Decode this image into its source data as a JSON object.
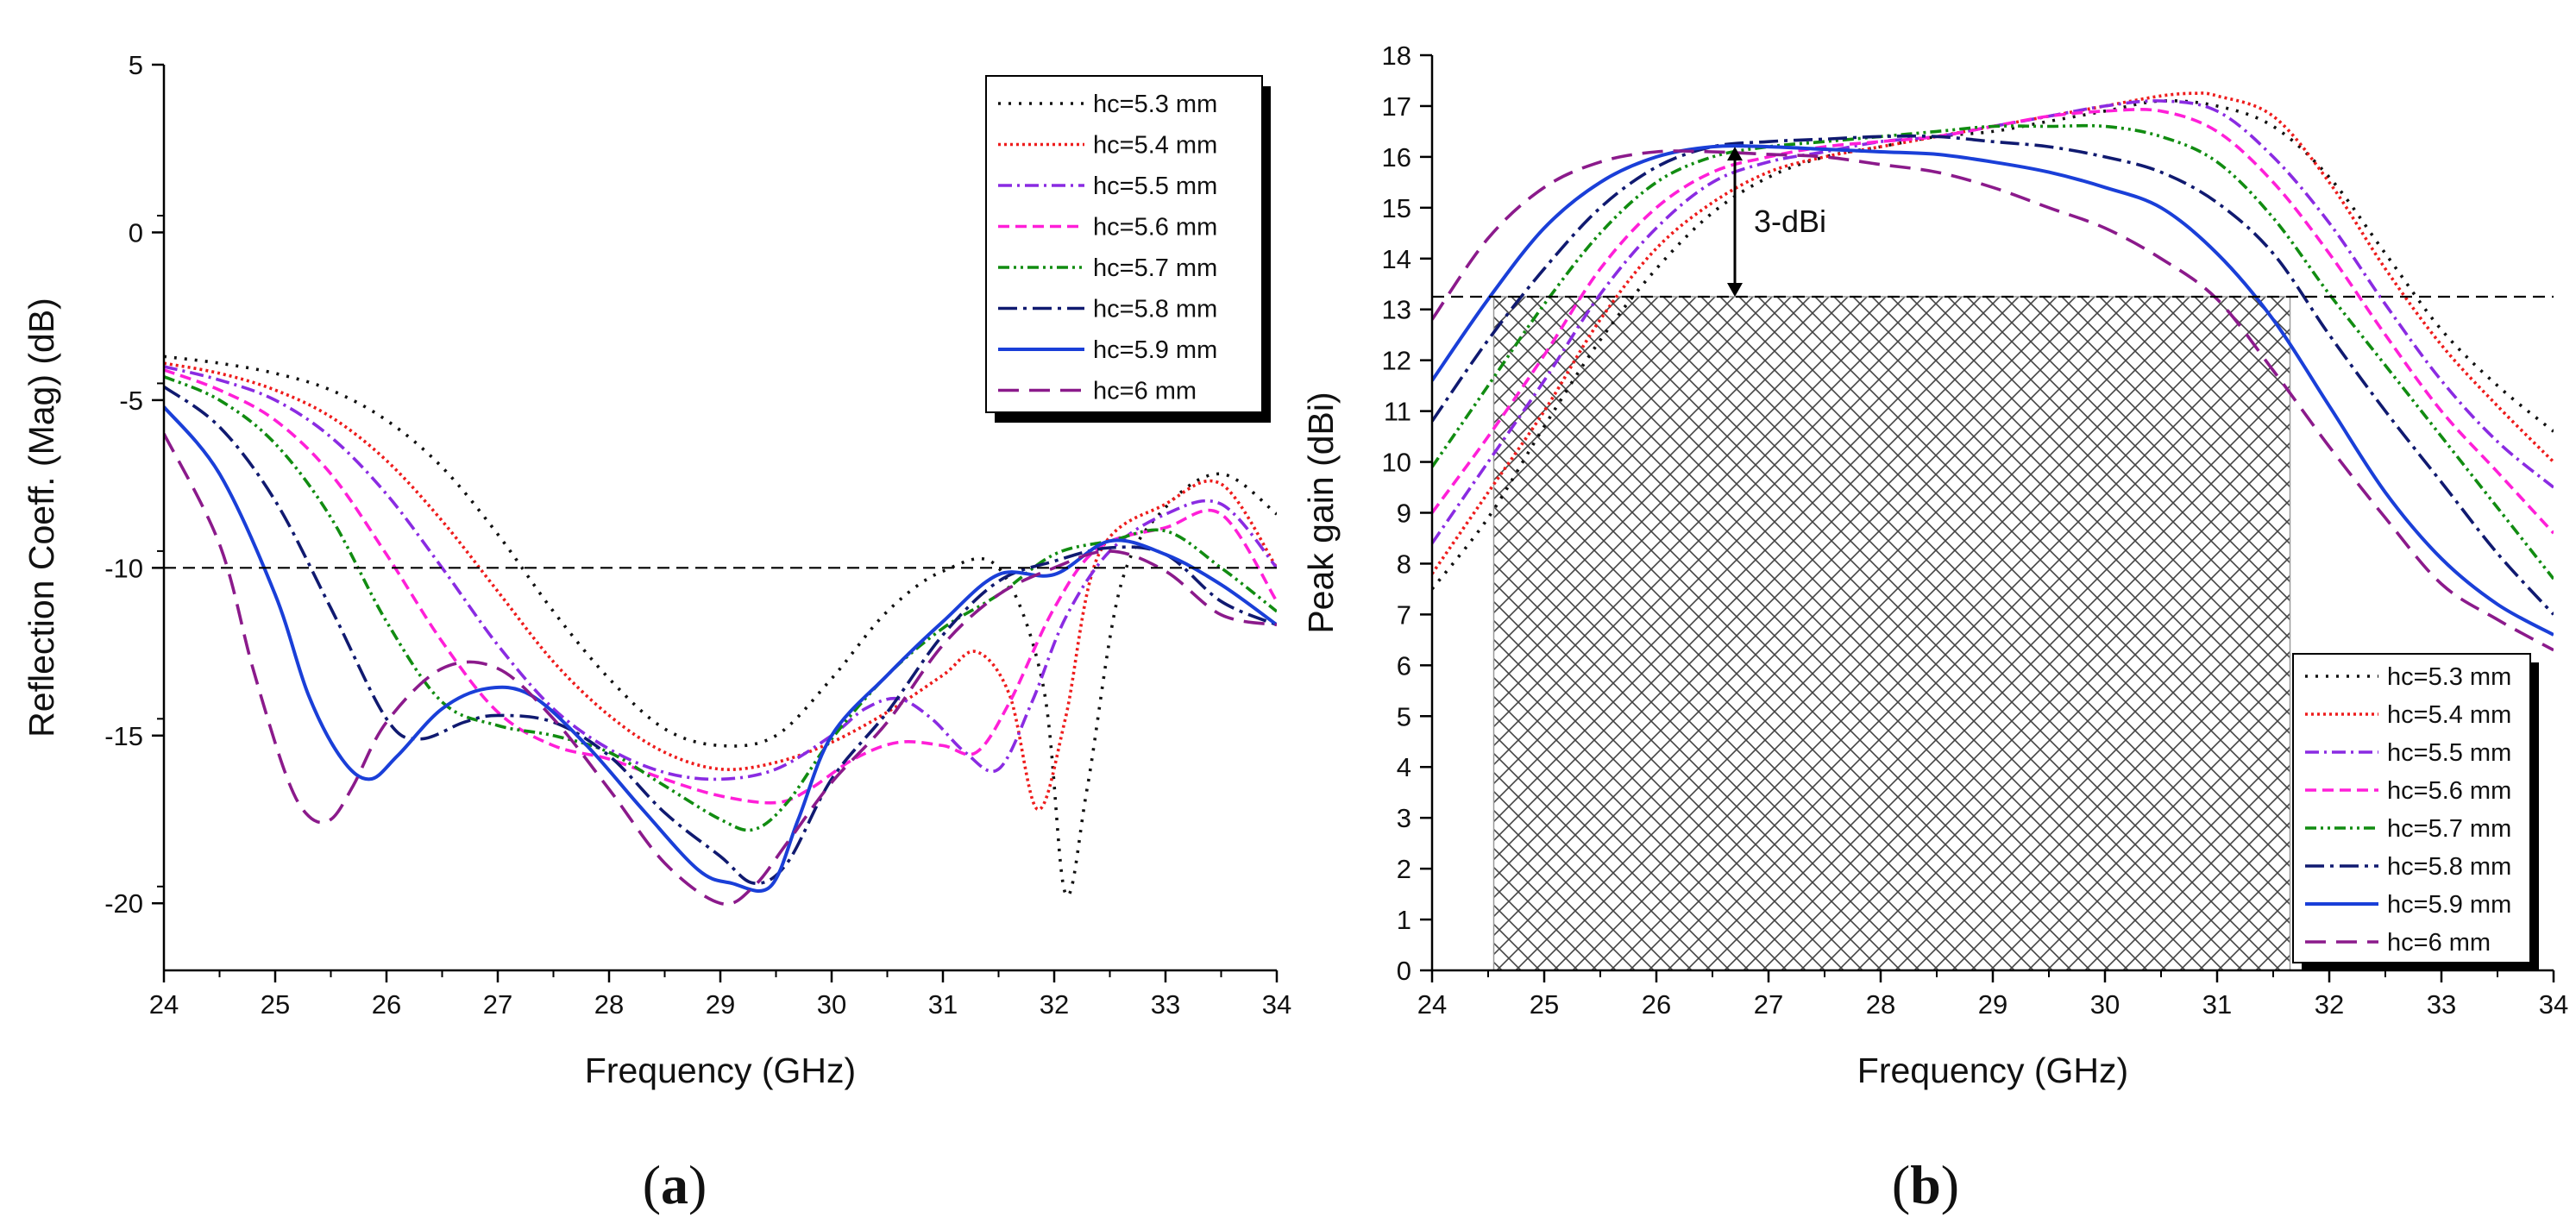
{
  "colors": {
    "hc=5.3 mm": "#111111",
    "hc=5.4 mm": "#ee1c1c",
    "hc=5.5 mm": "#8a2be2",
    "hc=5.6 mm": "#ff1fd8",
    "hc=5.7 mm": "#118c11",
    "hc=5.8 mm": "#101a70",
    "hc=5.9 mm": "#1a3fd8",
    "hc=6 mm": "#8b1a8b"
  },
  "chart_data": [
    {
      "panel_label": "a",
      "type": "line",
      "xlabel": "Frequency (GHz)",
      "ylabel": "Reflection Coeff. (Mag) (dB)",
      "xlim": [
        24,
        34
      ],
      "ylim": [
        -22,
        5
      ],
      "xticks": [
        "24",
        "25",
        "26",
        "27",
        "28",
        "29",
        "30",
        "31",
        "32",
        "33",
        "34"
      ],
      "yticks": [
        "-20",
        "-15",
        "-10",
        "-5",
        "0",
        "5"
      ],
      "reference_line_y": -10,
      "legend_position": "top-right",
      "series": [
        {
          "name": "hc=5.3 mm",
          "dash": "dot",
          "x": [
            24,
            24.5,
            25,
            25.5,
            26,
            26.5,
            27,
            27.5,
            28,
            28.5,
            29,
            29.5,
            30,
            30.5,
            31,
            31.5,
            31.9,
            32.1,
            32.3,
            32.6,
            33,
            33.5,
            34
          ],
          "y": [
            -3.7,
            -3.9,
            -4.2,
            -4.7,
            -5.6,
            -7.0,
            -9.0,
            -11.3,
            -13.3,
            -14.8,
            -15.3,
            -15.0,
            -13.3,
            -11.3,
            -10.1,
            -10.0,
            -13.5,
            -19.7,
            -16.5,
            -10.5,
            -8.2,
            -7.2,
            -8.4
          ]
        },
        {
          "name": "hc=5.4 mm",
          "dash": "shortdot",
          "x": [
            24,
            24.5,
            25,
            25.5,
            26,
            26.5,
            27,
            27.5,
            28,
            28.5,
            29,
            29.5,
            30,
            30.5,
            31,
            31.3,
            31.6,
            31.85,
            32.1,
            32.4,
            33,
            33.5,
            34
          ],
          "y": [
            -3.9,
            -4.2,
            -4.7,
            -5.5,
            -6.8,
            -8.6,
            -10.7,
            -12.8,
            -14.4,
            -15.5,
            -16.0,
            -15.8,
            -15.2,
            -14.3,
            -13.2,
            -12.5,
            -13.8,
            -17.2,
            -14.5,
            -9.6,
            -8.1,
            -7.5,
            -10.0
          ]
        },
        {
          "name": "hc=5.5 mm",
          "dash": "dashdot",
          "x": [
            24,
            24.5,
            25,
            25.5,
            26,
            26.5,
            27,
            27.5,
            28,
            28.5,
            29,
            29.5,
            30,
            30.3,
            30.6,
            30.9,
            31.2,
            31.5,
            31.8,
            32.1,
            32.5,
            33,
            33.5,
            34
          ],
          "y": [
            -4.0,
            -4.4,
            -5.0,
            -6.1,
            -7.8,
            -10.0,
            -12.3,
            -14.2,
            -15.4,
            -16.1,
            -16.3,
            -16.0,
            -15.0,
            -14.2,
            -13.9,
            -14.5,
            -15.5,
            -16.0,
            -14.0,
            -11.5,
            -9.5,
            -8.4,
            -8.1,
            -10.0
          ]
        },
        {
          "name": "hc=5.6 mm",
          "dash": "dash-short",
          "x": [
            24,
            24.5,
            25,
            25.5,
            26,
            26.5,
            27,
            27.5,
            28,
            28.5,
            29,
            29.5,
            29.8,
            30.2,
            30.6,
            31,
            31.3,
            31.6,
            32,
            32.4,
            33,
            33.5,
            34
          ],
          "y": [
            -4.1,
            -4.7,
            -5.6,
            -7.2,
            -9.6,
            -12.2,
            -14.3,
            -15.3,
            -15.7,
            -16.3,
            -16.8,
            -17.0,
            -16.6,
            -15.7,
            -15.2,
            -15.3,
            -15.5,
            -14.0,
            -11.2,
            -9.4,
            -8.8,
            -8.4,
            -11.0
          ]
        },
        {
          "name": "hc=5.7 mm",
          "dash": "dashdotdot",
          "x": [
            24,
            24.5,
            25,
            25.5,
            26,
            26.5,
            27,
            27.5,
            28,
            28.5,
            29,
            29.3,
            29.6,
            30,
            30.5,
            31,
            31.5,
            32,
            32.5,
            33,
            33.5,
            34
          ],
          "y": [
            -4.3,
            -5.0,
            -6.3,
            -8.5,
            -11.6,
            -14.0,
            -14.7,
            -15.0,
            -15.5,
            -16.5,
            -17.5,
            -17.8,
            -17.0,
            -15.1,
            -13.2,
            -11.8,
            -10.8,
            -9.6,
            -9.2,
            -8.9,
            -10.0,
            -11.3
          ]
        },
        {
          "name": "hc=5.8 mm",
          "dash": "dashdot-long",
          "x": [
            24,
            24.5,
            25,
            25.5,
            26,
            26.3,
            26.7,
            27,
            27.5,
            28,
            28.5,
            29,
            29.3,
            29.6,
            30,
            30.5,
            31,
            31.5,
            32,
            32.5,
            33,
            33.5,
            34
          ],
          "y": [
            -4.6,
            -5.8,
            -8.0,
            -11.2,
            -14.5,
            -15.1,
            -14.6,
            -14.4,
            -14.6,
            -15.6,
            -17.3,
            -18.6,
            -19.4,
            -18.8,
            -16.3,
            -14.3,
            -12.0,
            -10.4,
            -9.8,
            -9.4,
            -9.6,
            -11.0,
            -11.7
          ]
        },
        {
          "name": "hc=5.9 mm",
          "dash": "solid",
          "x": [
            24,
            24.5,
            25,
            25.3,
            25.6,
            25.85,
            26.1,
            26.5,
            26.9,
            27.3,
            27.8,
            28.3,
            28.8,
            29.1,
            29.45,
            29.7,
            30,
            30.5,
            31,
            31.5,
            32,
            32.5,
            33,
            33.5,
            34
          ],
          "y": [
            -5.2,
            -7.2,
            -10.8,
            -13.8,
            -15.7,
            -16.3,
            -15.6,
            -14.2,
            -13.6,
            -13.8,
            -15.3,
            -17.2,
            -19.0,
            -19.4,
            -19.5,
            -17.5,
            -15.0,
            -13.2,
            -11.6,
            -10.2,
            -10.2,
            -9.2,
            -9.6,
            -10.5,
            -11.7
          ]
        },
        {
          "name": "hc=6 mm",
          "dash": "dash-long",
          "x": [
            24,
            24.5,
            24.8,
            25.1,
            25.3,
            25.5,
            25.7,
            26,
            26.5,
            27,
            27.5,
            28,
            28.5,
            29,
            29.3,
            29.6,
            30,
            30.5,
            31,
            31.5,
            32,
            32.5,
            33,
            33.5,
            34
          ],
          "y": [
            -6.0,
            -9.3,
            -13.0,
            -16.2,
            -17.4,
            -17.5,
            -16.5,
            -14.6,
            -13.0,
            -13.0,
            -14.5,
            -16.6,
            -18.8,
            -20.0,
            -19.5,
            -18.2,
            -16.4,
            -14.6,
            -12.3,
            -10.8,
            -10.0,
            -9.5,
            -10.1,
            -11.4,
            -11.7
          ]
        }
      ]
    },
    {
      "panel_label": "b",
      "type": "line",
      "xlabel": "Frequency (GHz)",
      "ylabel": "Peak gain (dBi)",
      "xlim": [
        24,
        34
      ],
      "ylim": [
        0,
        18
      ],
      "xticks": [
        "24",
        "25",
        "26",
        "27",
        "28",
        "29",
        "30",
        "31",
        "32",
        "33",
        "34"
      ],
      "yticks": [
        "0",
        "1",
        "2",
        "3",
        "4",
        "5",
        "6",
        "7",
        "8",
        "9",
        "10",
        "11",
        "12",
        "13",
        "14",
        "15",
        "16",
        "17",
        "18"
      ],
      "reference_line_y": 13.25,
      "annotation": {
        "text": "3-dBi",
        "x": 26.7,
        "y_from": 13.25,
        "y_to": 16.2
      },
      "shaded_region": {
        "x": [
          24.55,
          31.65
        ],
        "y": [
          0,
          13.25
        ],
        "pattern": "crosshatch"
      },
      "legend_position": "bottom-right",
      "series": [
        {
          "name": "hc=5.3 mm",
          "dash": "dot",
          "x": [
            24,
            24.5,
            25,
            25.5,
            26,
            26.5,
            27,
            27.5,
            28,
            28.5,
            29,
            29.5,
            30,
            30.5,
            31,
            31.5,
            32,
            32.5,
            33,
            33.5,
            34
          ],
          "y": [
            7.5,
            8.9,
            10.7,
            12.4,
            13.8,
            14.9,
            15.6,
            16.0,
            16.2,
            16.4,
            16.5,
            16.7,
            16.9,
            17.1,
            17.0,
            16.6,
            15.6,
            14.1,
            12.6,
            11.5,
            10.6
          ]
        },
        {
          "name": "hc=5.4 mm",
          "dash": "shortdot",
          "x": [
            24,
            24.5,
            25,
            25.5,
            26,
            26.5,
            27,
            27.5,
            28,
            28.5,
            29,
            29.5,
            30,
            30.5,
            30.8,
            31,
            31.5,
            32,
            32.5,
            33,
            33.5,
            34
          ],
          "y": [
            7.8,
            9.4,
            11.0,
            12.8,
            14.2,
            15.1,
            15.7,
            16.0,
            16.2,
            16.4,
            16.6,
            16.8,
            17.0,
            17.2,
            17.25,
            17.2,
            16.8,
            15.5,
            13.8,
            12.3,
            11.1,
            10.0
          ]
        },
        {
          "name": "hc=5.5 mm",
          "dash": "dashdot",
          "x": [
            24,
            24.5,
            25,
            25.5,
            26,
            26.5,
            27,
            27.5,
            28,
            28.5,
            29,
            29.5,
            30,
            30.5,
            31,
            31.5,
            32,
            32.5,
            33,
            33.5,
            34
          ],
          "y": [
            8.4,
            10.0,
            11.6,
            13.3,
            14.6,
            15.5,
            15.9,
            16.1,
            16.3,
            16.4,
            16.6,
            16.8,
            17.0,
            17.1,
            16.9,
            16.0,
            14.7,
            13.1,
            11.6,
            10.4,
            9.5
          ]
        },
        {
          "name": "hc=5.6 mm",
          "dash": "dash-short",
          "x": [
            24,
            24.5,
            25,
            25.5,
            26,
            26.5,
            27,
            27.5,
            28,
            28.5,
            29,
            29.5,
            30,
            30.5,
            31,
            31.5,
            32,
            32.5,
            33,
            33.5,
            34
          ],
          "y": [
            9.0,
            10.5,
            12.1,
            13.8,
            15.0,
            15.7,
            16.0,
            16.2,
            16.3,
            16.4,
            16.6,
            16.8,
            16.9,
            16.9,
            16.5,
            15.5,
            14.1,
            12.5,
            11.0,
            9.8,
            8.6
          ]
        },
        {
          "name": "hc=5.7 mm",
          "dash": "dashdotdot",
          "x": [
            24,
            24.5,
            25,
            25.5,
            26,
            26.5,
            27,
            27.5,
            28,
            28.5,
            29,
            29.5,
            30,
            30.5,
            31,
            31.5,
            32,
            32.5,
            33,
            33.5,
            34
          ],
          "y": [
            9.9,
            11.5,
            13.1,
            14.5,
            15.5,
            16.0,
            16.2,
            16.3,
            16.4,
            16.5,
            16.6,
            16.6,
            16.6,
            16.4,
            15.9,
            14.8,
            13.3,
            11.9,
            10.5,
            9.1,
            7.7
          ]
        },
        {
          "name": "hc=5.8 mm",
          "dash": "dashdot-long",
          "x": [
            24,
            24.5,
            25,
            25.5,
            26,
            26.5,
            27,
            27.5,
            28,
            28.5,
            29,
            29.5,
            30,
            30.5,
            31,
            31.5,
            32,
            32.5,
            33,
            33.5,
            34
          ],
          "y": [
            10.8,
            12.4,
            13.8,
            15.0,
            15.8,
            16.2,
            16.3,
            16.35,
            16.4,
            16.4,
            16.3,
            16.2,
            16.0,
            15.7,
            15.1,
            14.1,
            12.5,
            11.0,
            9.6,
            8.2,
            7.0
          ]
        },
        {
          "name": "hc=5.9 mm",
          "dash": "solid",
          "x": [
            24,
            24.5,
            25,
            25.5,
            26,
            26.5,
            27,
            27.5,
            28,
            28.5,
            29,
            29.5,
            30,
            30.5,
            31,
            31.5,
            32,
            32.5,
            33,
            33.5,
            34
          ],
          "y": [
            11.6,
            13.2,
            14.6,
            15.5,
            16.0,
            16.2,
            16.2,
            16.15,
            16.1,
            16.05,
            15.9,
            15.7,
            15.4,
            15.0,
            14.1,
            12.8,
            11.1,
            9.4,
            8.1,
            7.2,
            6.6
          ]
        },
        {
          "name": "hc=6 mm",
          "dash": "dash-long",
          "x": [
            24,
            24.5,
            25,
            25.5,
            26,
            26.5,
            27,
            27.5,
            28,
            28.5,
            29,
            29.5,
            30,
            30.5,
            31,
            31.5,
            32,
            32.5,
            33,
            33.5,
            34
          ],
          "y": [
            12.8,
            14.4,
            15.4,
            15.9,
            16.1,
            16.1,
            16.05,
            16.0,
            15.85,
            15.7,
            15.4,
            15.0,
            14.6,
            14.0,
            13.2,
            11.8,
            10.3,
            8.9,
            7.6,
            6.9,
            6.3
          ]
        }
      ]
    }
  ]
}
